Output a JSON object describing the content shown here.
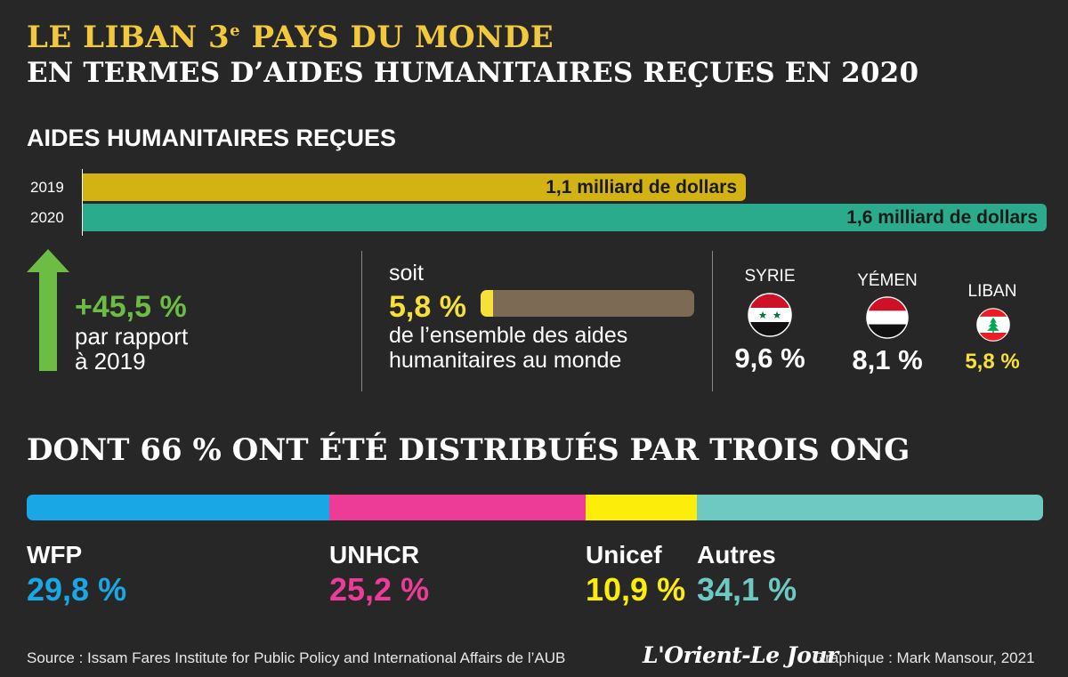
{
  "title": {
    "line1_main": "LE LIBAN 3",
    "line1_sup": "e",
    "line1_end": " PAYS DU MONDE",
    "line2": "EN TERMES D’AIDES HUMANITAIRES REÇUES EN 2020"
  },
  "aid_section": {
    "label": "AIDES HUMANITAIRES REÇUES"
  },
  "chart_data": [
    {
      "type": "bar",
      "orientation": "horizontal",
      "title": "AIDES HUMANITAIRES REÇUES",
      "categories": [
        "2019",
        "2020"
      ],
      "values": [
        1.1,
        1.6
      ],
      "labels": [
        "1,1 milliard de dollars",
        "1,6 milliard de dollars"
      ],
      "unit": "milliard de dollars",
      "colors": [
        "#d3b213",
        "#2aab8c"
      ],
      "xlim": [
        0,
        1.6
      ]
    },
    {
      "type": "bar",
      "title": "",
      "categories": [
        "SYRIE",
        "YÉMEN",
        "LIBAN"
      ],
      "values": [
        9.6,
        8.1,
        5.8
      ],
      "labels": [
        "9,6 %",
        "8,1 %",
        "5,8 %"
      ],
      "unit": "%"
    },
    {
      "type": "bar",
      "orientation": "horizontal-stacked",
      "title": "DONT 66 % ONT ÉTÉ DISTRIBUÉS PAR TROIS ONG",
      "categories": [
        "WFP",
        "UNHCR",
        "Unicef",
        "Autres"
      ],
      "values": [
        29.8,
        25.2,
        10.9,
        34.1
      ],
      "labels": [
        "29,8 %",
        "25,2 %",
        "10,9 %",
        "34,1 %"
      ],
      "colors": [
        "#1aa7e6",
        "#ec3c97",
        "#fced0a",
        "#6ec9c2"
      ],
      "unit": "%"
    }
  ],
  "increase": {
    "value": "+45,5 %",
    "line1": "par rapport",
    "line2": "à 2019",
    "color": "#6dbd45"
  },
  "share": {
    "prefix": "soit",
    "value": "5,8 %",
    "fraction": 0.058,
    "line1": "de l’ensemble des aides",
    "line2": "humanitaires au monde",
    "fill_color": "#f5e13a",
    "track_color": "#7d6a55"
  },
  "countries": [
    {
      "name": "SYRIE",
      "value": "9,6 %",
      "icon": "syria-flag-icon",
      "value_color": "#ffffff"
    },
    {
      "name": "YÉMEN",
      "value": "8,1 %",
      "icon": "yemen-flag-icon",
      "value_color": "#ffffff"
    },
    {
      "name": "LIBAN",
      "value": "5,8 %",
      "icon": "lebanon-flag-icon",
      "value_color": "#f5e13a"
    }
  ],
  "ong_section": {
    "title": "DONT 66 % ONT ÉTÉ DISTRIBUÉS PAR TROIS ONG"
  },
  "footer": {
    "source": "Source : Issam Fares Institute for Public Policy and International Affairs de l’AUB",
    "logo": "L'Orient-Le Jour",
    "credit": "Graphique : Mark Mansour, 2021"
  }
}
